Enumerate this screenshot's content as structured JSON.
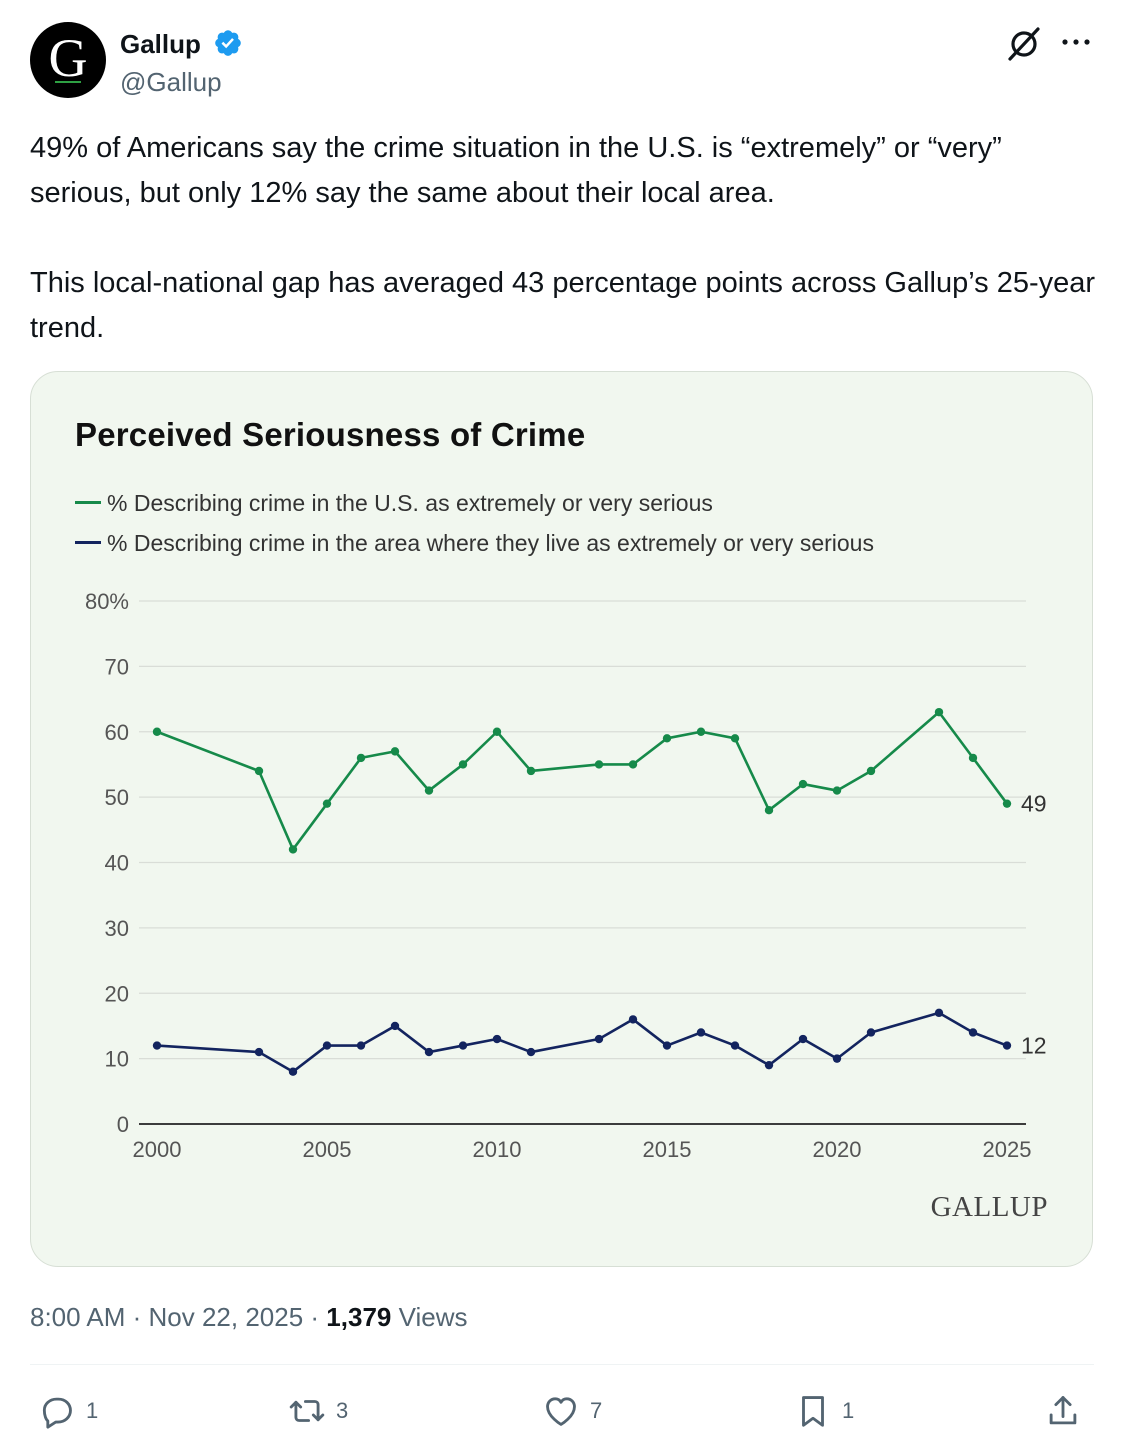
{
  "author": {
    "avatar_letter": "G",
    "name": "Gallup",
    "handle": "@Gallup"
  },
  "tweet": {
    "paragraph1": "49% of Americans say the crime situation in the U.S. is “extremely” or “very” serious, but only 12% say the same about their local area.",
    "paragraph2": "This local-national gap has averaged 43 percentage points across Gallup’s 25-year trend."
  },
  "meta": {
    "time": "8:00 AM",
    "separator": " · ",
    "date": "Nov 22, 2025",
    "views_count": "1,379",
    "views_label": "Views"
  },
  "actions": {
    "replies": "1",
    "retweets": "3",
    "likes": "7",
    "bookmarks": "1"
  },
  "colors": {
    "green": "#168a4a",
    "navy": "#13245f"
  },
  "chart_data": {
    "type": "line",
    "title": "Perceived Seriousness of Crime",
    "brand": "GALLUP",
    "xlabel": "",
    "ylabel": "",
    "ylim": [
      0,
      80
    ],
    "xlim": [
      2000,
      2025
    ],
    "y_ticks": [
      0,
      10,
      20,
      30,
      40,
      50,
      60,
      70,
      80
    ],
    "y_tick_labels": [
      "0",
      "10",
      "20",
      "30",
      "40",
      "50",
      "60",
      "70",
      "80%"
    ],
    "x_ticks": [
      2000,
      2005,
      2010,
      2015,
      2020,
      2025
    ],
    "x_tick_labels": [
      "2000",
      "2005",
      "2010",
      "2015",
      "2020",
      "2025"
    ],
    "grid": true,
    "series": [
      {
        "name": "% Describing crime in the U.S. as extremely or very serious",
        "color": "#168a4a",
        "end_label": "49",
        "x": [
          2000,
          2003,
          2004,
          2005,
          2006,
          2007,
          2008,
          2009,
          2010,
          2011,
          2013,
          2014,
          2015,
          2016,
          2017,
          2018,
          2019,
          2020,
          2021,
          2023,
          2024,
          2025
        ],
        "values": [
          60,
          54,
          42,
          49,
          56,
          57,
          51,
          55,
          60,
          54,
          55,
          55,
          59,
          60,
          59,
          48,
          52,
          51,
          54,
          63,
          56,
          49
        ]
      },
      {
        "name": "% Describing crime in the area where they live as extremely or very serious",
        "color": "#13245f",
        "end_label": "12",
        "x": [
          2000,
          2003,
          2004,
          2005,
          2006,
          2007,
          2008,
          2009,
          2010,
          2011,
          2013,
          2014,
          2015,
          2016,
          2017,
          2018,
          2019,
          2020,
          2021,
          2023,
          2024,
          2025
        ],
        "values": [
          12,
          11,
          8,
          12,
          12,
          15,
          11,
          12,
          13,
          11,
          13,
          16,
          12,
          14,
          12,
          9,
          13,
          10,
          14,
          17,
          14,
          12
        ]
      }
    ]
  }
}
